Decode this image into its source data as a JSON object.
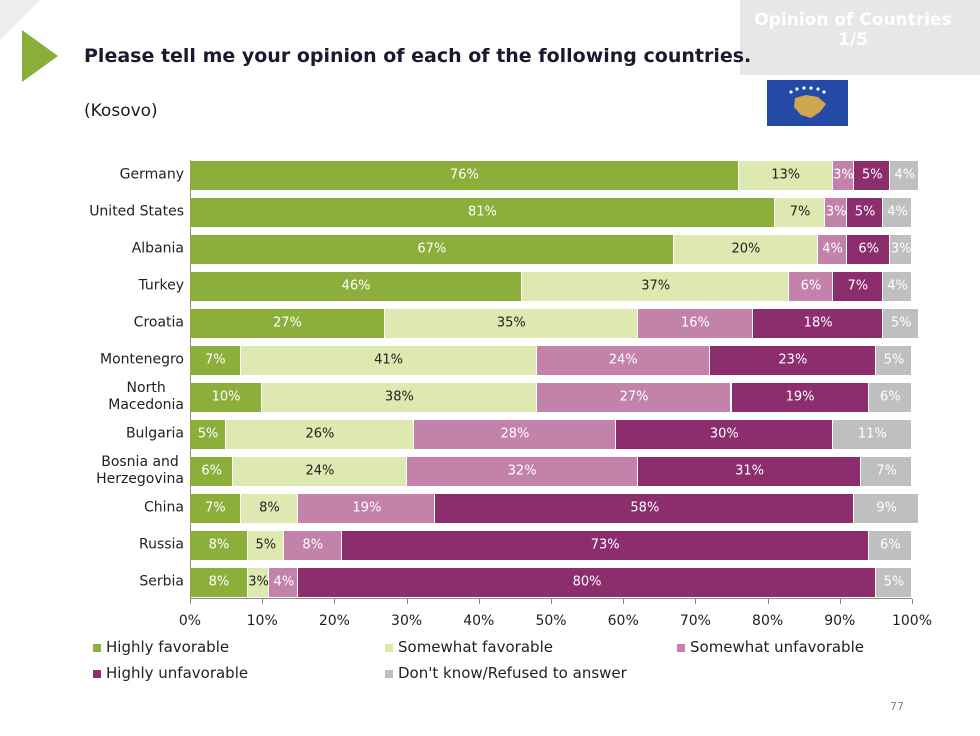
{
  "header_tab": [
    "Opinion of Countries",
    "1/5"
  ],
  "page_number": 77,
  "chart_data": {
    "type": "stacked-bar-horizontal",
    "title": "Please tell me your opinion of each of the following countries.",
    "subtitle": "(Kosovo)",
    "categories": [
      "Germany",
      "United States",
      "Albania",
      "Turkey",
      "Croatia",
      "Montenegro",
      "North\nMacedonia",
      "Bulgaria",
      "Bosnia and\nHerzegovina",
      "China",
      "Russia",
      "Serbia"
    ],
    "xlim": [
      0,
      100
    ],
    "xticks": [
      {
        "value": 0,
        "label": "0%"
      },
      {
        "value": 10,
        "label": "10%"
      },
      {
        "value": 20,
        "label": "20%"
      },
      {
        "value": 30,
        "label": "30%"
      },
      {
        "value": 40,
        "label": "40%"
      },
      {
        "value": 50,
        "label": "50%"
      },
      {
        "value": 60,
        "label": "60%"
      },
      {
        "value": 70,
        "label": "70%"
      },
      {
        "value": 80,
        "label": "80%"
      },
      {
        "value": 90,
        "label": "90%"
      },
      {
        "value": 100,
        "label": "100%"
      }
    ],
    "series": [
      {
        "name": "Highly favorable",
        "color": "#8cae3b",
        "values": [
          76,
          81,
          67,
          46,
          27,
          7,
          10,
          5,
          6,
          7,
          8,
          8
        ],
        "value_labels": [
          "76%",
          "81%",
          "67%",
          "46%",
          "27%",
          "7%",
          "10%",
          "5%",
          "6%",
          "7%",
          "8%",
          "8%"
        ]
      },
      {
        "name": "Somewhat favorable",
        "color": "#dde9b0",
        "values": [
          13,
          7,
          20,
          37,
          35,
          41,
          38,
          26,
          24,
          8,
          5,
          3
        ],
        "value_labels": [
          "13%",
          "7%",
          "20%",
          "37%",
          "35%",
          "41%",
          "38%",
          "26%",
          "24%",
          "8%",
          "5%",
          "3%"
        ]
      },
      {
        "name": "Somewhat unfavorable",
        "color": "#c382aa",
        "values": [
          3,
          3,
          4,
          6,
          16,
          24,
          27,
          28,
          32,
          19,
          8,
          4
        ],
        "value_labels": [
          "3%",
          "3%",
          "4%",
          "6%",
          "16%",
          "24%",
          "27%",
          "28%",
          "32%",
          "19%",
          "8%",
          "4%"
        ]
      },
      {
        "name": "Highly unfavorable",
        "color": "#8c2d6e",
        "values": [
          5,
          5,
          6,
          7,
          18,
          23,
          19,
          30,
          31,
          58,
          73,
          80
        ],
        "value_labels": [
          "5%",
          "5%",
          "6%",
          "7%",
          "18%",
          "23%",
          "19%",
          "30%",
          "31%",
          "58%",
          "73%",
          "80%"
        ]
      },
      {
        "name": "Don't know/Refused to answer",
        "color": "#bfbfbf",
        "values": [
          4,
          4,
          3,
          4,
          5,
          5,
          6,
          11,
          7,
          9,
          6,
          5
        ],
        "value_labels": [
          "4%",
          "4%",
          "3%",
          "4%",
          "5%",
          "5%",
          "6%",
          "11%",
          "7%",
          "9%",
          "6%",
          "5%"
        ]
      }
    ]
  }
}
